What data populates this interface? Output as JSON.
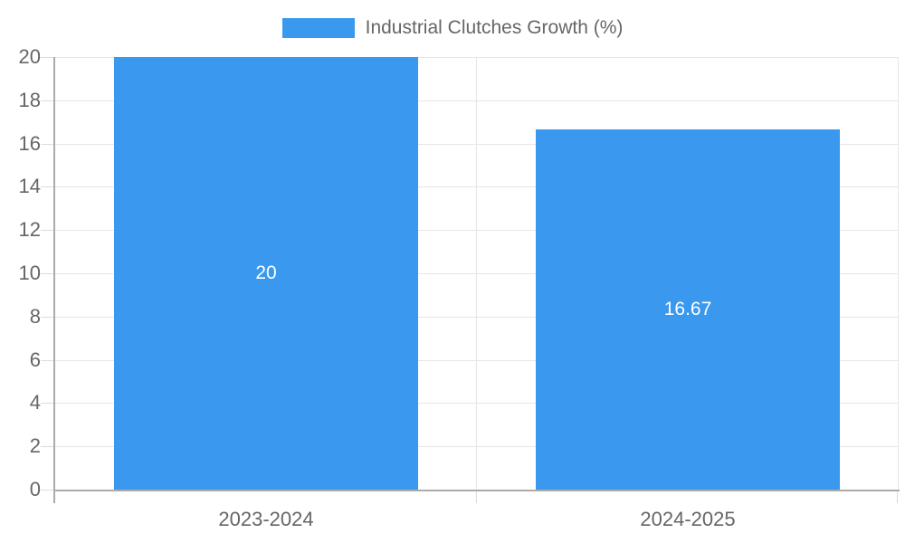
{
  "legend": {
    "label": "Industrial Clutches Growth (%)"
  },
  "colors": {
    "bar": "#3A99EE",
    "grid": "#E6E6E6",
    "axis": "#ABABAB",
    "tick": "#DCDCDC",
    "tick_text": "#666666",
    "legend_text": "#666666",
    "bar_label_text": "#FFFFFF",
    "background": "#FFFFFF"
  },
  "chart_data": {
    "type": "bar",
    "title": "Industrial Clutches Growth (%)",
    "categories": [
      "2023-2024",
      "2024-2025"
    ],
    "values": [
      20,
      16.67
    ],
    "value_labels": [
      "20",
      "16.67"
    ],
    "series": [
      {
        "name": "Industrial Clutches Growth (%)",
        "values": [
          20,
          16.67
        ]
      }
    ],
    "xlabel": "",
    "ylabel": "",
    "ylim": [
      0,
      20
    ],
    "yticks": [
      0,
      2,
      4,
      6,
      8,
      10,
      12,
      14,
      16,
      18,
      20
    ],
    "grid": true,
    "legend_position": "top",
    "value_label_position": "center"
  }
}
